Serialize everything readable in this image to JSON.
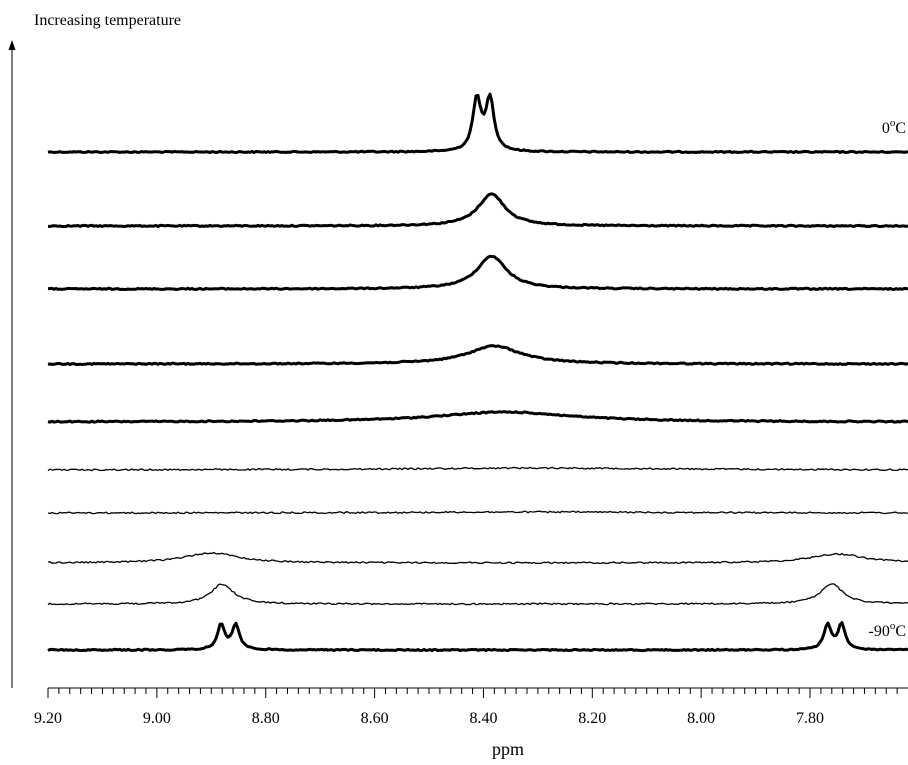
{
  "chart_data": {
    "type": "line",
    "title": "",
    "xlabel": "ppm",
    "ylabel": "Increasing temperature",
    "xlim": [
      9.2,
      7.62
    ],
    "x_reversed": true,
    "xticks": [
      "9.20",
      "9.00",
      "8.80",
      "8.60",
      "8.40",
      "8.20",
      "8.00",
      "7.80"
    ],
    "grid": false,
    "legend": "none",
    "series": [
      {
        "name": "0oC",
        "label_text": "0",
        "label_sup": "o",
        "label_tail": "C",
        "peaks": [
          {
            "x": 8.412,
            "width": 0.009,
            "height": 52
          },
          {
            "x": 8.388,
            "width": 0.009,
            "height": 52
          }
        ]
      },
      {
        "name": "",
        "peaks": [
          {
            "x": 8.385,
            "width": 0.03,
            "height": 32
          }
        ]
      },
      {
        "name": "",
        "peaks": [
          {
            "x": 8.385,
            "width": 0.033,
            "height": 33
          }
        ]
      },
      {
        "name": "",
        "peaks": [
          {
            "x": 8.38,
            "width": 0.06,
            "height": 18
          }
        ]
      },
      {
        "name": "",
        "peaks": [
          {
            "x": 8.36,
            "width": 0.15,
            "height": 10
          }
        ]
      },
      {
        "name": "",
        "peaks": [
          {
            "x": 8.3,
            "width": 0.3,
            "height": 2
          }
        ]
      },
      {
        "name": "",
        "peaks": [
          {
            "x": 8.3,
            "width": 0.3,
            "height": 1
          }
        ]
      },
      {
        "name": "",
        "peaks": [
          {
            "x": 8.9,
            "width": 0.06,
            "height": 10
          },
          {
            "x": 7.75,
            "width": 0.06,
            "height": 9
          }
        ]
      },
      {
        "name": "",
        "peaks": [
          {
            "x": 8.88,
            "width": 0.025,
            "height": 20
          },
          {
            "x": 7.76,
            "width": 0.025,
            "height": 20
          }
        ]
      },
      {
        "name": "-90oC",
        "label_text": "-90",
        "label_sup": "o",
        "label_tail": "C",
        "peaks": [
          {
            "x": 8.882,
            "width": 0.008,
            "height": 25
          },
          {
            "x": 8.855,
            "width": 0.008,
            "height": 25
          },
          {
            "x": 7.768,
            "width": 0.008,
            "height": 25
          },
          {
            "x": 7.742,
            "width": 0.008,
            "height": 25
          }
        ]
      }
    ]
  }
}
